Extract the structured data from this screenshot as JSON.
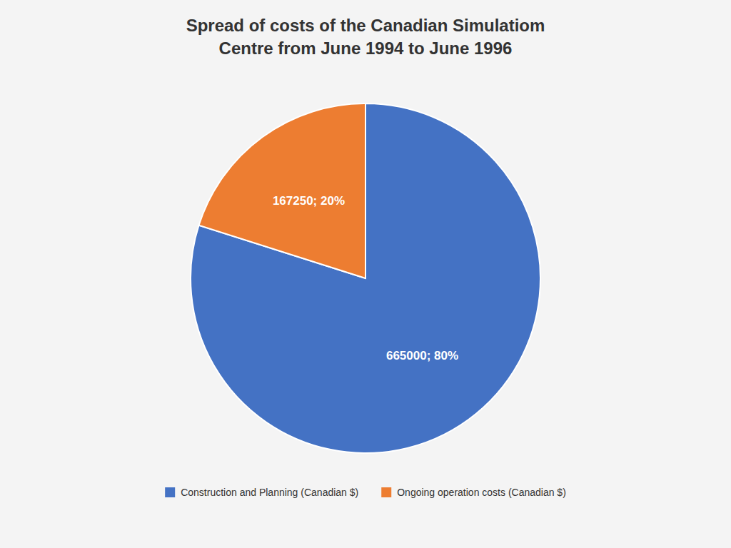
{
  "chart_data": {
    "type": "pie",
    "title": "Spread of costs of the Canadian Simulatiom\nCentre from June 1994 to June 1996",
    "categories": [
      "Construction and Planning (Canadian $)",
      "Ongoing operation costs (Canadian $)"
    ],
    "values": [
      665000,
      167250
    ],
    "value_labels": [
      "665000; 80%",
      "167250; 20%"
    ],
    "colors": [
      "#4472C4",
      "#ED7D31"
    ],
    "data_labels": true,
    "legend": "bottom"
  }
}
